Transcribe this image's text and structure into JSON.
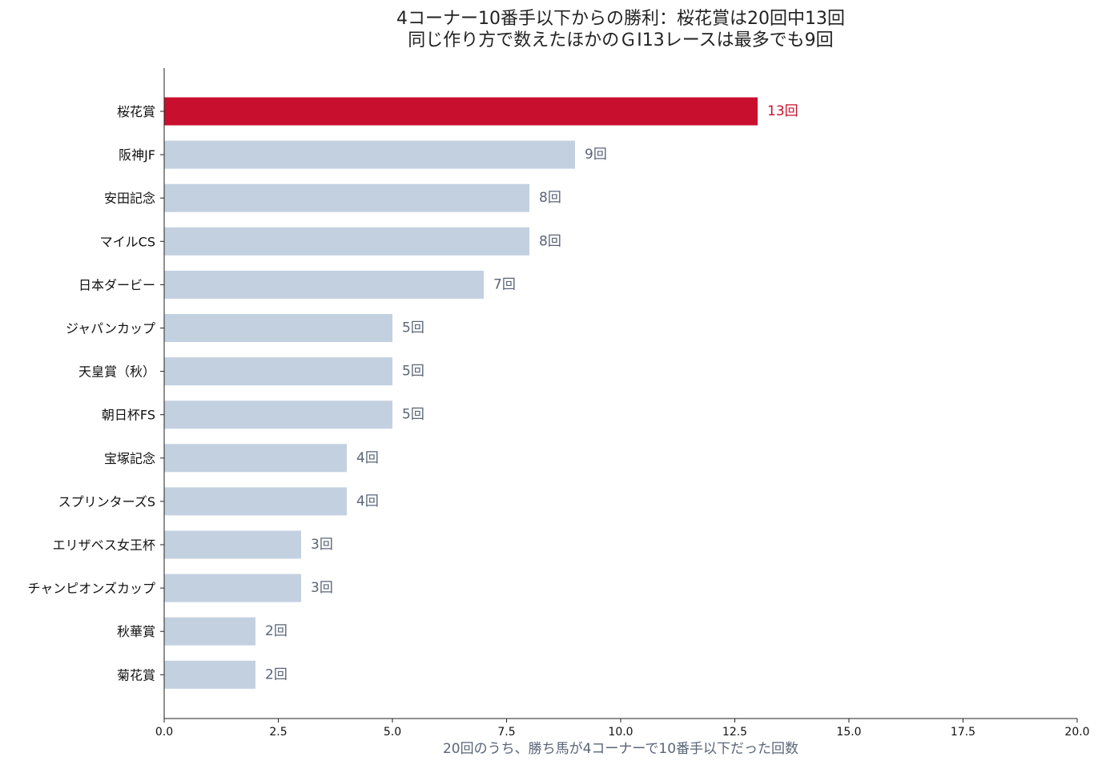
{
  "chart_data": {
    "type": "bar",
    "orientation": "horizontal",
    "title": "4コーナー10番手以下からの勝利：桜花賞は20回中13回",
    "subtitle": "同じ作り方で数えたほかのＧⅠ13レースは最多でも9回",
    "xlabel": "20回のうち、勝ち馬が4コーナーで10番手以下だった回数",
    "ylabel": "",
    "xlim": [
      0,
      20
    ],
    "x_ticks": [
      "0.0",
      "2.5",
      "5.0",
      "7.5",
      "10.0",
      "12.5",
      "15.0",
      "17.5",
      "20.0"
    ],
    "value_suffix": "回",
    "grid": false,
    "categories": [
      "桜花賞",
      "阪神JF",
      "安田記念",
      "マイルCS",
      "日本ダービー",
      "ジャパンカップ",
      "天皇賞（秋）",
      "朝日杯FS",
      "宝塚記念",
      "スプリンターズS",
      "エリザベス女王杯",
      "チャンピオンズカップ",
      "秋華賞",
      "菊花賞"
    ],
    "values": [
      13,
      9,
      8,
      8,
      7,
      5,
      5,
      5,
      4,
      4,
      3,
      3,
      2,
      2
    ],
    "highlight_index": 0,
    "colors": {
      "highlight": "#c8102e",
      "bar": "#c3d0e0",
      "label": "#5a6577",
      "axis": "#222222"
    }
  }
}
